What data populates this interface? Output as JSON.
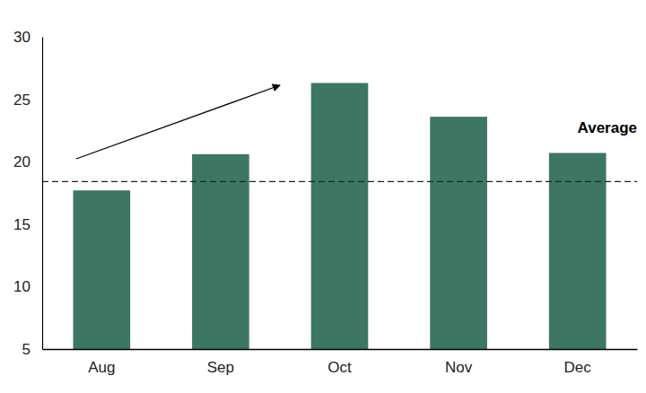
{
  "chart_data": {
    "type": "bar",
    "categories": [
      "Aug",
      "Sep",
      "Oct",
      "Nov",
      "Dec"
    ],
    "values": [
      17.7,
      20.6,
      26.3,
      23.6,
      20.7
    ],
    "color": "#3d7763",
    "ylim": [
      5,
      30
    ],
    "yticks": [
      5,
      10,
      15,
      20,
      25,
      30
    ],
    "grid": false,
    "reference_line": {
      "value": 18.4,
      "label": "Average",
      "line_style": "dashed"
    }
  }
}
